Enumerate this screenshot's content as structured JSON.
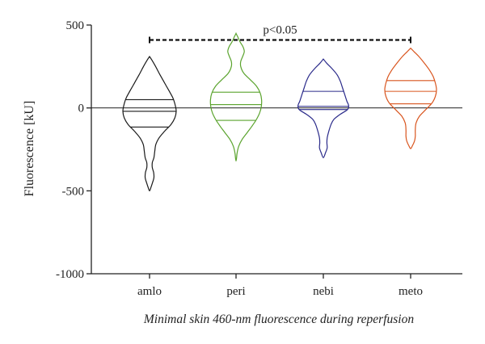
{
  "chart_data": {
    "type": "violin",
    "title": "",
    "xlabel": "Minimal skin 460-nm fluorescence during reperfusion",
    "ylabel": "Fluorescence [kU]",
    "categories": [
      "amlo",
      "peri",
      "nebi",
      "meto"
    ],
    "ylim": [
      -1000,
      500
    ],
    "yticks": [
      "500",
      "0",
      "-500",
      "-1000"
    ],
    "grid": false,
    "legend": "none",
    "significance": {
      "label": "p<0.05",
      "from": "amlo",
      "to": "meto",
      "y": 410
    },
    "series": [
      {
        "category": "amlo",
        "color": "#1a1a1a",
        "quartiles": {
          "q1": -115,
          "median": -20,
          "q3": 50
        },
        "range": [
          -500,
          310
        ],
        "density_profile": [
          {
            "y": 310,
            "w": 0.0
          },
          {
            "y": 290,
            "w": 0.08
          },
          {
            "y": 250,
            "w": 0.22
          },
          {
            "y": 200,
            "w": 0.38
          },
          {
            "y": 150,
            "w": 0.55
          },
          {
            "y": 100,
            "w": 0.72
          },
          {
            "y": 60,
            "w": 0.85
          },
          {
            "y": 20,
            "w": 0.93
          },
          {
            "y": -20,
            "w": 0.97
          },
          {
            "y": -60,
            "w": 0.92
          },
          {
            "y": -100,
            "w": 0.78
          },
          {
            "y": -140,
            "w": 0.55
          },
          {
            "y": -180,
            "w": 0.35
          },
          {
            "y": -220,
            "w": 0.23
          },
          {
            "y": -260,
            "w": 0.19
          },
          {
            "y": -300,
            "w": 0.16
          },
          {
            "y": -330,
            "w": 0.1
          },
          {
            "y": -360,
            "w": 0.1
          },
          {
            "y": -390,
            "w": 0.15
          },
          {
            "y": -420,
            "w": 0.16
          },
          {
            "y": -450,
            "w": 0.11
          },
          {
            "y": -480,
            "w": 0.05
          },
          {
            "y": -500,
            "w": 0.0
          }
        ]
      },
      {
        "category": "peri",
        "color": "#5aa32d",
        "quartiles": {
          "q1": -75,
          "median": 20,
          "q3": 95
        },
        "range": [
          -320,
          450
        ],
        "density_profile": [
          {
            "y": 450,
            "w": 0.0
          },
          {
            "y": 430,
            "w": 0.06
          },
          {
            "y": 400,
            "w": 0.14
          },
          {
            "y": 370,
            "w": 0.25
          },
          {
            "y": 340,
            "w": 0.3
          },
          {
            "y": 310,
            "w": 0.24
          },
          {
            "y": 280,
            "w": 0.17
          },
          {
            "y": 250,
            "w": 0.17
          },
          {
            "y": 210,
            "w": 0.28
          },
          {
            "y": 170,
            "w": 0.52
          },
          {
            "y": 130,
            "w": 0.75
          },
          {
            "y": 90,
            "w": 0.88
          },
          {
            "y": 50,
            "w": 0.93
          },
          {
            "y": 10,
            "w": 0.92
          },
          {
            "y": -30,
            "w": 0.86
          },
          {
            "y": -70,
            "w": 0.74
          },
          {
            "y": -110,
            "w": 0.58
          },
          {
            "y": -150,
            "w": 0.4
          },
          {
            "y": -190,
            "w": 0.22
          },
          {
            "y": -230,
            "w": 0.1
          },
          {
            "y": -270,
            "w": 0.04
          },
          {
            "y": -300,
            "w": 0.02
          },
          {
            "y": -320,
            "w": 0.0
          }
        ]
      },
      {
        "category": "nebi",
        "color": "#2a2a8a",
        "quartiles": {
          "q1": -10,
          "median": 10,
          "q3": 100
        },
        "range": [
          -300,
          295
        ],
        "density_profile": [
          {
            "y": 295,
            "w": 0.0
          },
          {
            "y": 270,
            "w": 0.12
          },
          {
            "y": 240,
            "w": 0.3
          },
          {
            "y": 200,
            "w": 0.5
          },
          {
            "y": 160,
            "w": 0.62
          },
          {
            "y": 120,
            "w": 0.7
          },
          {
            "y": 80,
            "w": 0.78
          },
          {
            "y": 40,
            "w": 0.86
          },
          {
            "y": 15,
            "w": 0.92
          },
          {
            "y": -10,
            "w": 0.88
          },
          {
            "y": -40,
            "w": 0.6
          },
          {
            "y": -70,
            "w": 0.38
          },
          {
            "y": -100,
            "w": 0.28
          },
          {
            "y": -140,
            "w": 0.2
          },
          {
            "y": -180,
            "w": 0.14
          },
          {
            "y": -210,
            "w": 0.13
          },
          {
            "y": -240,
            "w": 0.14
          },
          {
            "y": -270,
            "w": 0.08
          },
          {
            "y": -300,
            "w": 0.0
          }
        ]
      },
      {
        "category": "meto",
        "color": "#d9551e",
        "quartiles": {
          "q1": 25,
          "median": 100,
          "q3": 165
        },
        "range": [
          -245,
          360
        ],
        "density_profile": [
          {
            "y": 360,
            "w": 0.0
          },
          {
            "y": 340,
            "w": 0.12
          },
          {
            "y": 310,
            "w": 0.3
          },
          {
            "y": 270,
            "w": 0.5
          },
          {
            "y": 230,
            "w": 0.68
          },
          {
            "y": 190,
            "w": 0.82
          },
          {
            "y": 150,
            "w": 0.9
          },
          {
            "y": 110,
            "w": 0.94
          },
          {
            "y": 70,
            "w": 0.9
          },
          {
            "y": 30,
            "w": 0.78
          },
          {
            "y": -10,
            "w": 0.55
          },
          {
            "y": -50,
            "w": 0.32
          },
          {
            "y": -90,
            "w": 0.2
          },
          {
            "y": -130,
            "w": 0.17
          },
          {
            "y": -170,
            "w": 0.17
          },
          {
            "y": -200,
            "w": 0.14
          },
          {
            "y": -230,
            "w": 0.06
          },
          {
            "y": -245,
            "w": 0.0
          }
        ]
      }
    ]
  }
}
